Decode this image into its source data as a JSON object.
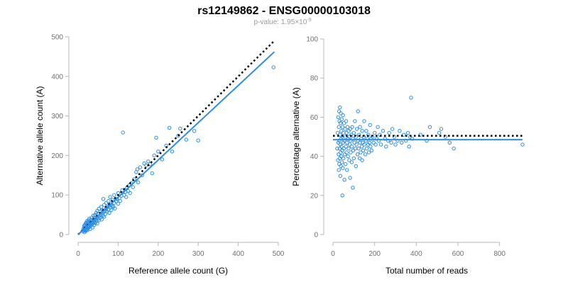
{
  "title": "rs12149862 - ENSG00000103018",
  "subtitle_prefix": "p-value: 1.95×10",
  "subtitle_exponent": "-9",
  "colors": {
    "points": "#2a8ee6",
    "fit_line": "#2a8ee6",
    "expected_line": "#000000",
    "axis": "#b7b7b7",
    "tick_text": "#707070"
  },
  "chart_data": [
    {
      "type": "scatter",
      "xlabel": "Reference allele count (G)",
      "ylabel": "Alternative allele count (A)",
      "xlim": [
        0,
        500
      ],
      "ylim": [
        0,
        500
      ],
      "xticks": [
        0,
        100,
        200,
        300,
        400,
        500
      ],
      "yticks": [
        0,
        100,
        200,
        300,
        400,
        500
      ],
      "grid": false,
      "expected_line": {
        "style": "dotted",
        "from": [
          0,
          0
        ],
        "to": [
          490,
          490
        ]
      },
      "fit_line": {
        "style": "solid",
        "from": [
          0,
          0
        ],
        "to": [
          490,
          462
        ]
      },
      "points": [
        [
          12,
          8
        ],
        [
          13,
          14
        ],
        [
          14,
          11
        ],
        [
          15,
          18
        ],
        [
          15,
          22
        ],
        [
          16,
          6
        ],
        [
          16,
          10
        ],
        [
          17,
          15
        ],
        [
          17,
          25
        ],
        [
          18,
          12
        ],
        [
          18,
          20
        ],
        [
          19,
          9
        ],
        [
          19,
          28
        ],
        [
          20,
          16
        ],
        [
          20,
          30
        ],
        [
          21,
          13
        ],
        [
          21,
          19
        ],
        [
          22,
          24
        ],
        [
          22,
          34
        ],
        [
          23,
          11
        ],
        [
          23,
          27
        ],
        [
          24,
          20
        ],
        [
          24,
          31
        ],
        [
          25,
          15
        ],
        [
          25,
          23
        ],
        [
          26,
          36
        ],
        [
          27,
          19
        ],
        [
          27,
          28
        ],
        [
          28,
          21
        ],
        [
          28,
          40
        ],
        [
          29,
          25
        ],
        [
          30,
          14
        ],
        [
          30,
          32
        ],
        [
          31,
          27
        ],
        [
          32,
          38
        ],
        [
          32,
          22
        ],
        [
          33,
          30
        ],
        [
          34,
          43
        ],
        [
          35,
          26
        ],
        [
          35,
          35
        ],
        [
          36,
          18
        ],
        [
          37,
          33
        ],
        [
          38,
          29
        ],
        [
          38,
          48
        ],
        [
          39,
          37
        ],
        [
          40,
          24
        ],
        [
          40,
          42
        ],
        [
          41,
          34
        ],
        [
          42,
          50
        ],
        [
          43,
          30
        ],
        [
          44,
          39
        ],
        [
          45,
          55
        ],
        [
          46,
          35
        ],
        [
          47,
          44
        ],
        [
          48,
          28
        ],
        [
          48,
          60
        ],
        [
          50,
          40
        ],
        [
          50,
          52
        ],
        [
          52,
          36
        ],
        [
          52,
          65
        ],
        [
          53,
          47
        ],
        [
          55,
          42
        ],
        [
          55,
          58
        ],
        [
          57,
          50
        ],
        [
          58,
          70
        ],
        [
          59,
          38
        ],
        [
          60,
          55
        ],
        [
          61,
          62
        ],
        [
          62,
          48
        ],
        [
          63,
          90
        ],
        [
          64,
          57
        ],
        [
          65,
          45
        ],
        [
          65,
          75
        ],
        [
          67,
          60
        ],
        [
          68,
          52
        ],
        [
          70,
          66
        ],
        [
          70,
          80
        ],
        [
          72,
          58
        ],
        [
          73,
          70
        ],
        [
          75,
          63
        ],
        [
          76,
          85
        ],
        [
          78,
          55
        ],
        [
          78,
          72
        ],
        [
          80,
          68
        ],
        [
          80,
          95
        ],
        [
          82,
          77
        ],
        [
          83,
          62
        ],
        [
          85,
          73
        ],
        [
          86,
          88
        ],
        [
          88,
          70
        ],
        [
          90,
          80
        ],
        [
          90,
          100
        ],
        [
          92,
          66
        ],
        [
          95,
          84
        ],
        [
          97,
          90
        ],
        [
          100,
          78
        ],
        [
          100,
          105
        ],
        [
          103,
          92
        ],
        [
          105,
          85
        ],
        [
          108,
          98
        ],
        [
          110,
          112
        ],
        [
          112,
          258
        ],
        [
          115,
          100
        ],
        [
          118,
          108
        ],
        [
          120,
          95
        ],
        [
          122,
          118
        ],
        [
          125,
          110
        ],
        [
          128,
          125
        ],
        [
          130,
          105
        ],
        [
          133,
          130
        ],
        [
          137,
          120
        ],
        [
          140,
          140
        ],
        [
          145,
          158
        ],
        [
          148,
          165
        ],
        [
          150,
          132
        ],
        [
          155,
          170
        ],
        [
          160,
          150
        ],
        [
          165,
          180
        ],
        [
          170,
          175
        ],
        [
          175,
          185
        ],
        [
          180,
          178
        ],
        [
          185,
          155
        ],
        [
          190,
          200
        ],
        [
          195,
          245
        ],
        [
          200,
          210
        ],
        [
          210,
          190
        ],
        [
          220,
          225
        ],
        [
          228,
          270
        ],
        [
          235,
          210
        ],
        [
          250,
          250
        ],
        [
          255,
          268
        ],
        [
          270,
          240
        ],
        [
          290,
          262
        ],
        [
          300,
          238
        ],
        [
          488,
          423
        ]
      ]
    },
    {
      "type": "scatter",
      "xlabel": "Total number of reads",
      "ylabel": "Percentage alternative (A)",
      "xlim": [
        0,
        900
      ],
      "ylim": [
        0,
        100
      ],
      "xticks": [
        0,
        200,
        400,
        600,
        800
      ],
      "yticks": [
        0,
        20,
        40,
        60,
        80,
        100
      ],
      "grid": false,
      "expected_line": {
        "style": "dotted",
        "from": [
          0,
          50.5
        ],
        "to": [
          910,
          50.5
        ]
      },
      "fit_line": {
        "style": "solid",
        "from": [
          0,
          48.5
        ],
        "to": [
          910,
          48.5
        ]
      },
      "points": [
        [
          20,
          44
        ],
        [
          22,
          52
        ],
        [
          24,
          38
        ],
        [
          25,
          60
        ],
        [
          26,
          47
        ],
        [
          27,
          41
        ],
        [
          28,
          55
        ],
        [
          28,
          33
        ],
        [
          29,
          63
        ],
        [
          30,
          48
        ],
        [
          30,
          36
        ],
        [
          31,
          58
        ],
        [
          32,
          44
        ],
        [
          33,
          65
        ],
        [
          33,
          39
        ],
        [
          34,
          51
        ],
        [
          35,
          46
        ],
        [
          35,
          30
        ],
        [
          36,
          57
        ],
        [
          37,
          42
        ],
        [
          38,
          62
        ],
        [
          38,
          35
        ],
        [
          39,
          49
        ],
        [
          40,
          53
        ],
        [
          40,
          40
        ],
        [
          41,
          45
        ],
        [
          42,
          59
        ],
        [
          43,
          37
        ],
        [
          44,
          50
        ],
        [
          45,
          20
        ],
        [
          45,
          43
        ],
        [
          46,
          55
        ],
        [
          47,
          34
        ],
        [
          48,
          61
        ],
        [
          49,
          47
        ],
        [
          50,
          39
        ],
        [
          50,
          52
        ],
        [
          52,
          44
        ],
        [
          53,
          57
        ],
        [
          55,
          28
        ],
        [
          55,
          48
        ],
        [
          57,
          41
        ],
        [
          58,
          54
        ],
        [
          60,
          36
        ],
        [
          60,
          50
        ],
        [
          62,
          45
        ],
        [
          63,
          58
        ],
        [
          65,
          42
        ],
        [
          65,
          52
        ],
        [
          67,
          33
        ],
        [
          68,
          47
        ],
        [
          70,
          55
        ],
        [
          72,
          40
        ],
        [
          73,
          49
        ],
        [
          75,
          44
        ],
        [
          75,
          53
        ],
        [
          78,
          38
        ],
        [
          78,
          50
        ],
        [
          80,
          46
        ],
        [
          82,
          29
        ],
        [
          83,
          54
        ],
        [
          85,
          42
        ],
        [
          85,
          48
        ],
        [
          88,
          51
        ],
        [
          90,
          37
        ],
        [
          90,
          45
        ],
        [
          92,
          55
        ],
        [
          95,
          24
        ],
        [
          95,
          49
        ],
        [
          97,
          43
        ],
        [
          100,
          52
        ],
        [
          100,
          39
        ],
        [
          103,
          47
        ],
        [
          105,
          58
        ],
        [
          107,
          44
        ],
        [
          110,
          50
        ],
        [
          110,
          35
        ],
        [
          113,
          46
        ],
        [
          115,
          54
        ],
        [
          118,
          41
        ],
        [
          120,
          63
        ],
        [
          120,
          48
        ],
        [
          123,
          44
        ],
        [
          125,
          51
        ],
        [
          128,
          39
        ],
        [
          130,
          47
        ],
        [
          130,
          55
        ],
        [
          133,
          42
        ],
        [
          135,
          49
        ],
        [
          138,
          45
        ],
        [
          140,
          53
        ],
        [
          140,
          38
        ],
        [
          143,
          47
        ],
        [
          145,
          43
        ],
        [
          148,
          50
        ],
        [
          150,
          46
        ],
        [
          150,
          58
        ],
        [
          155,
          41
        ],
        [
          158,
          48
        ],
        [
          160,
          53
        ],
        [
          162,
          44
        ],
        [
          165,
          49
        ],
        [
          168,
          46
        ],
        [
          170,
          51
        ],
        [
          172,
          42
        ],
        [
          175,
          47
        ],
        [
          178,
          56
        ],
        [
          180,
          45
        ],
        [
          183,
          49
        ],
        [
          185,
          43
        ],
        [
          190,
          50
        ],
        [
          195,
          47
        ],
        [
          200,
          52
        ],
        [
          205,
          46
        ],
        [
          210,
          49
        ],
        [
          215,
          55
        ],
        [
          220,
          48
        ],
        [
          225,
          51
        ],
        [
          230,
          46
        ],
        [
          240,
          53
        ],
        [
          250,
          49
        ],
        [
          255,
          45
        ],
        [
          265,
          48
        ],
        [
          270,
          52
        ],
        [
          280,
          47
        ],
        [
          285,
          54
        ],
        [
          295,
          50
        ],
        [
          300,
          46
        ],
        [
          310,
          48
        ],
        [
          320,
          53
        ],
        [
          330,
          47
        ],
        [
          340,
          51
        ],
        [
          350,
          48
        ],
        [
          360,
          52
        ],
        [
          365,
          45
        ],
        [
          370,
          50
        ],
        [
          375,
          70
        ],
        [
          380,
          49
        ],
        [
          420,
          51
        ],
        [
          450,
          48
        ],
        [
          465,
          55
        ],
        [
          510,
          52
        ],
        [
          520,
          54
        ],
        [
          540,
          50
        ],
        [
          560,
          47
        ],
        [
          580,
          44
        ],
        [
          910,
          46
        ]
      ]
    }
  ]
}
